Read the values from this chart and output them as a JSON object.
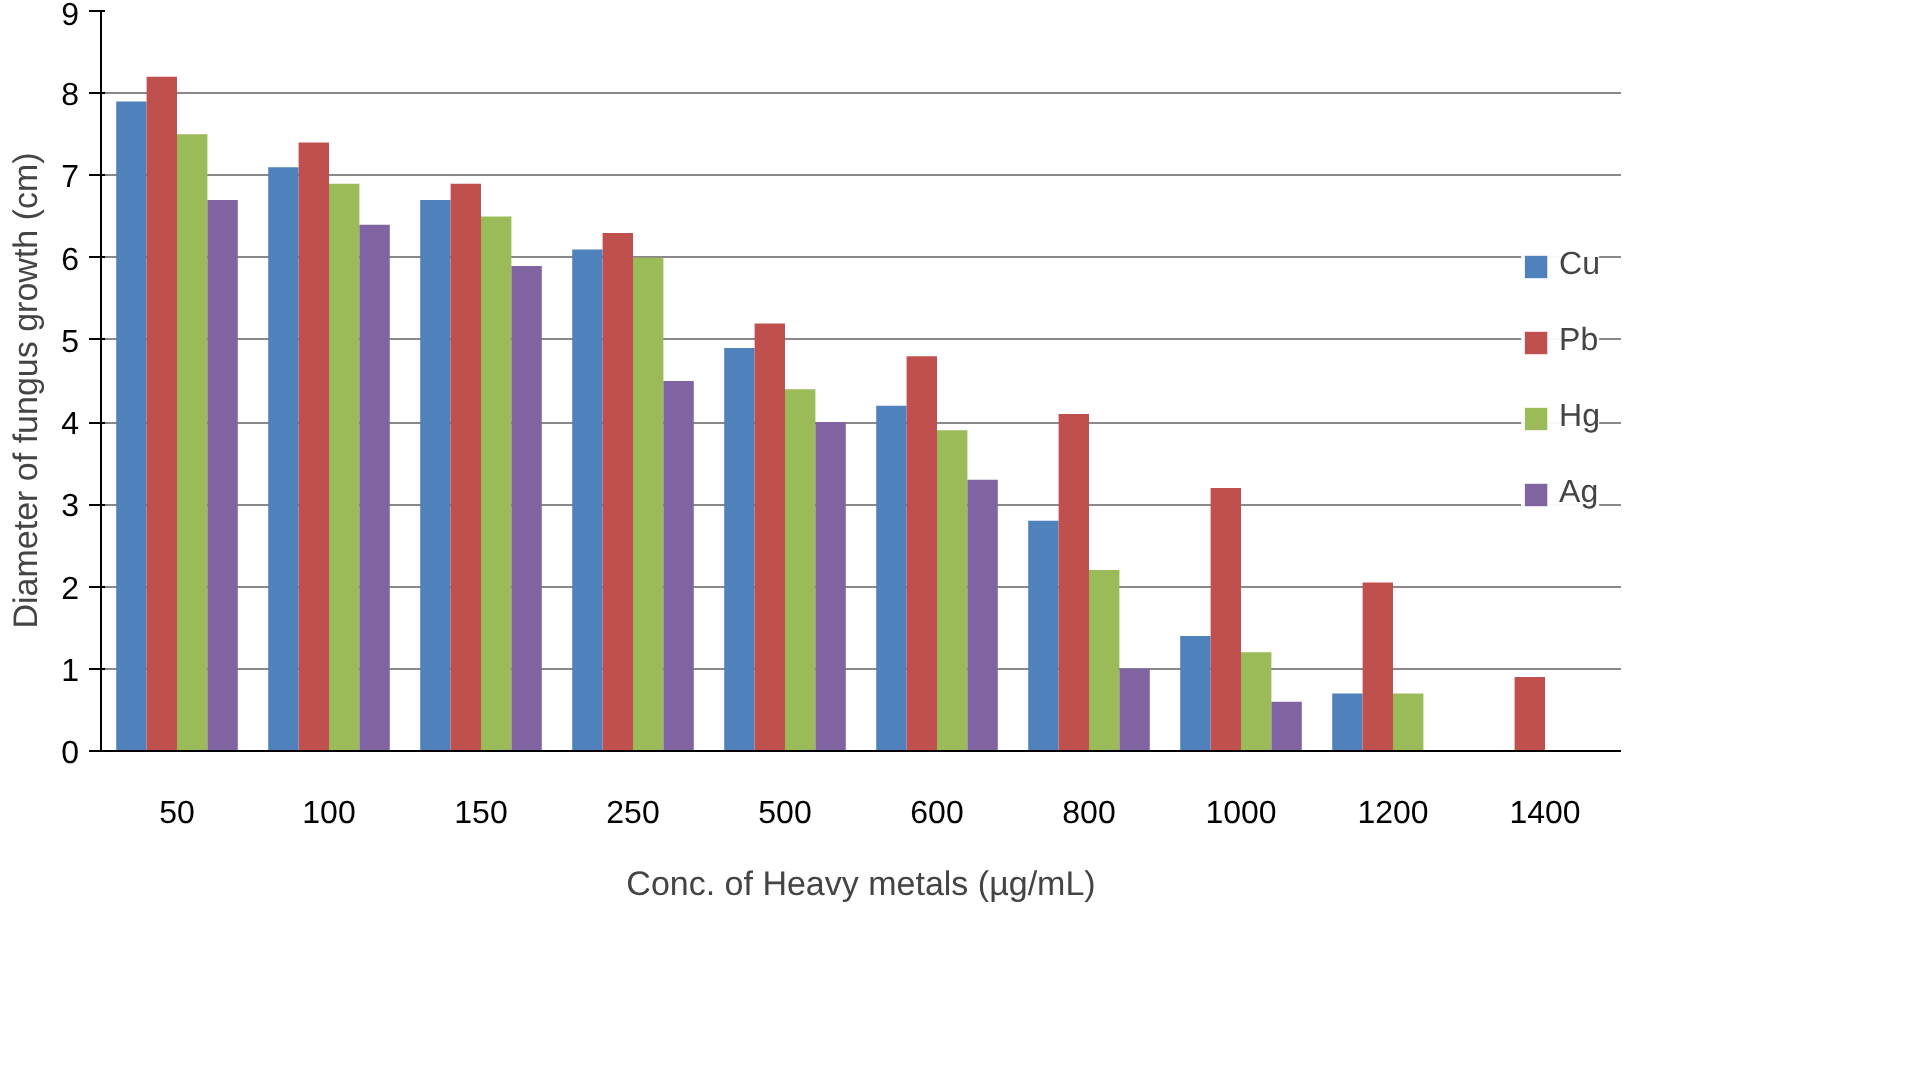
{
  "chart_data": {
    "type": "bar",
    "xlabel": "Conc. of Heavy metals (µg/mL)",
    "ylabel": "Diameter  of  fungus growth (cm)",
    "categories": [
      "50",
      "100",
      "150",
      "250",
      "500",
      "600",
      "800",
      "1000",
      "1200",
      "1400"
    ],
    "series": [
      {
        "name": "Cu",
        "color": "#4f81bd",
        "values": [
          7.9,
          7.1,
          6.7,
          6.1,
          4.9,
          4.2,
          2.8,
          1.4,
          0.7,
          null
        ]
      },
      {
        "name": "Pb",
        "color": "#c0504d",
        "values": [
          8.2,
          7.4,
          6.9,
          6.3,
          5.2,
          4.8,
          4.1,
          3.2,
          2.05,
          0.9
        ]
      },
      {
        "name": "Hg",
        "color": "#9bbb59",
        "values": [
          7.5,
          6.9,
          6.5,
          6.0,
          4.4,
          3.9,
          2.2,
          1.2,
          0.7,
          null
        ]
      },
      {
        "name": "Ag",
        "color": "#8064a2",
        "values": [
          6.7,
          6.4,
          5.9,
          4.5,
          4.0,
          3.3,
          1.0,
          0.6,
          null,
          null
        ]
      }
    ],
    "ylim": [
      0,
      9
    ],
    "yticks": [
      0,
      1,
      2,
      3,
      4,
      5,
      6,
      7,
      8,
      9
    ],
    "grid": "y",
    "legend": "right"
  }
}
